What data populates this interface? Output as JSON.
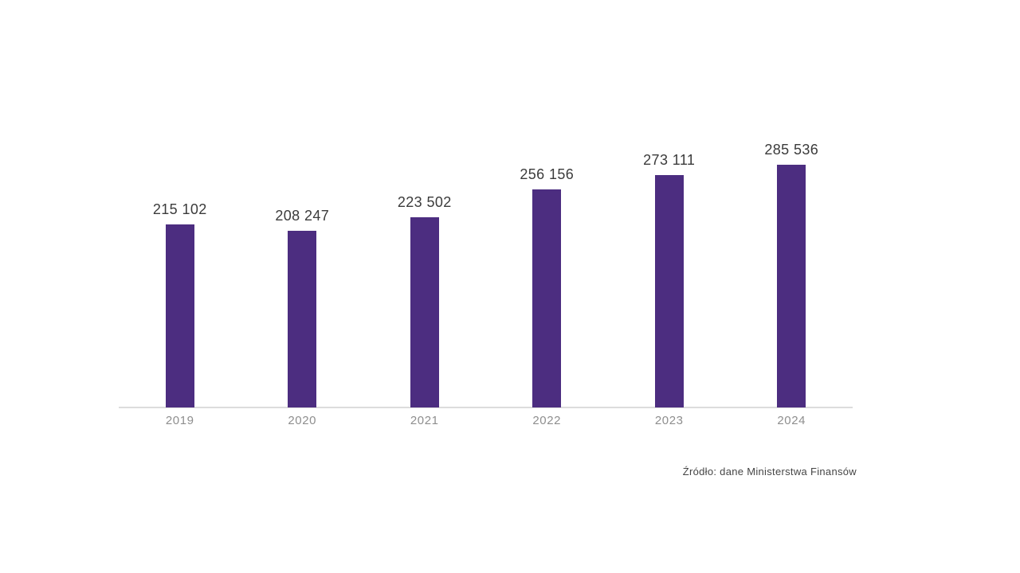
{
  "chart_data": {
    "type": "bar",
    "title": "",
    "xlabel": "",
    "ylabel": "",
    "categories": [
      "2019",
      "2020",
      "2021",
      "2022",
      "2023",
      "2024"
    ],
    "values": [
      215102,
      208247,
      223502,
      256156,
      273111,
      285536
    ],
    "value_labels": [
      "215 102",
      "208 247",
      "223 502",
      "256 156",
      "273 111",
      "285 536"
    ],
    "ylim": [
      0,
      300000
    ],
    "grid": false,
    "legend": false,
    "y_axis_hidden": true,
    "bar_color": "#4c2d80",
    "axis_line_color": "#dcdcdc",
    "value_label_color": "#3b3b3b",
    "tick_label_color": "#8e8e8e"
  },
  "source_note": "Źródło: dane Ministerstwa Finansów"
}
